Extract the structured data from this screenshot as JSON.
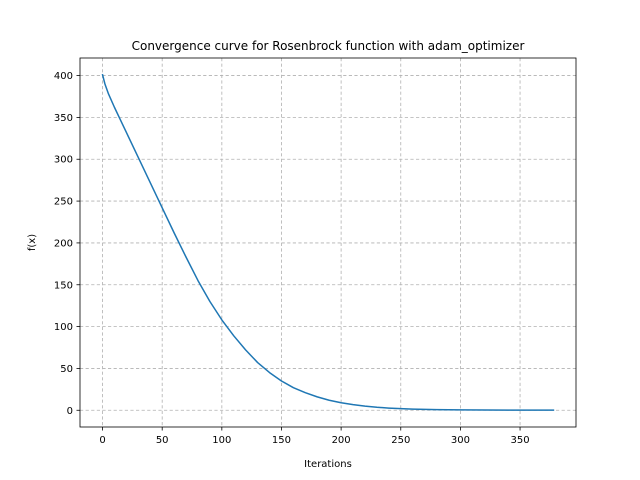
{
  "chart_data": {
    "type": "line",
    "title": "Convergence curve for Rosenbrock function with adam_optimizer",
    "xlabel": "Iterations",
    "ylabel": "f(x)",
    "xlim": [
      -18.9,
      396.9
    ],
    "ylim": [
      -20.0,
      421.0
    ],
    "xticks": [
      0,
      50,
      100,
      150,
      200,
      250,
      300,
      350
    ],
    "yticks": [
      0,
      50,
      100,
      150,
      200,
      250,
      300,
      350,
      400
    ],
    "grid": true,
    "grid_style": "dashed",
    "series": [
      {
        "color": "#1f77b4",
        "x": [
          0,
          2,
          5,
          10,
          15,
          20,
          30,
          40,
          50,
          60,
          70,
          80,
          90,
          100,
          110,
          120,
          130,
          140,
          150,
          160,
          170,
          180,
          190,
          200,
          210,
          220,
          230,
          240,
          250,
          260,
          280,
          300,
          320,
          340,
          360,
          378
        ],
        "y": [
          401,
          390,
          378,
          362,
          347,
          332,
          302,
          272,
          242,
          212,
          183,
          155,
          130,
          108,
          89,
          72,
          57,
          45,
          35,
          27,
          21,
          16,
          12,
          9,
          6.8,
          5,
          3.6,
          2.6,
          1.9,
          1.4,
          0.8,
          0.5,
          0.3,
          0.2,
          0.1,
          0.1
        ]
      }
    ]
  }
}
